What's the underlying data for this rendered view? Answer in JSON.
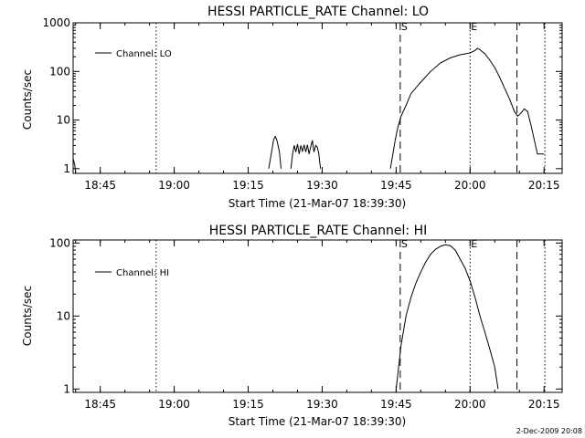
{
  "chart_data": [
    {
      "type": "line",
      "title": "HESSI PARTICLE_RATE Channel: LO",
      "xlabel": "Start Time (21-Mar-07 18:39:30)",
      "ylabel": "Counts/sec",
      "yscale": "log",
      "ylim": [
        0.8,
        1000
      ],
      "xlim": [
        "18:39:30",
        "20:18:40"
      ],
      "x_ticks": [
        "18:45",
        "19:00",
        "19:15",
        "19:30",
        "19:45",
        "20:00",
        "20:15"
      ],
      "y_ticks": [
        "1",
        "10",
        "100",
        "1000"
      ],
      "legend_position": "top-left",
      "grid": false,
      "series": [
        {
          "name": "Channel: LO",
          "segments": [
            [
              [
                "18:39:30",
                1.6
              ],
              [
                "18:39:50",
                1.2
              ],
              [
                "18:40:00",
                0.8
              ]
            ],
            [
              [
                "19:19:10",
                1.0
              ],
              [
                "19:19:40",
                2.0
              ],
              [
                "19:20:10",
                4.0
              ],
              [
                "19:20:30",
                4.6
              ],
              [
                "19:20:50",
                3.8
              ],
              [
                "19:21:20",
                2.2
              ],
              [
                "19:21:40",
                1.0
              ]
            ],
            [
              [
                "19:23:40",
                1.0
              ],
              [
                "19:24:00",
                2.0
              ],
              [
                "19:24:20",
                3.0
              ],
              [
                "19:24:40",
                2.2
              ],
              [
                "19:25:00",
                3.2
              ],
              [
                "19:25:20",
                2.0
              ],
              [
                "19:25:40",
                3.0
              ],
              [
                "19:26:00",
                2.3
              ],
              [
                "19:26:20",
                3.1
              ],
              [
                "19:26:40",
                2.2
              ],
              [
                "19:27:00",
                3.1
              ],
              [
                "19:27:20",
                2.0
              ],
              [
                "19:27:40",
                2.8
              ],
              [
                "19:28:00",
                3.8
              ],
              [
                "19:28:20",
                2.2
              ],
              [
                "19:28:40",
                3.0
              ],
              [
                "19:29:00",
                2.8
              ],
              [
                "19:29:20",
                2.0
              ],
              [
                "19:29:40",
                1.0
              ]
            ],
            [
              [
                "19:43:50",
                1.0
              ],
              [
                "19:44:20",
                2.0
              ],
              [
                "19:44:50",
                4.0
              ],
              [
                "19:45:20",
                7.0
              ],
              [
                "19:46:00",
                12.0
              ],
              [
                "19:47:00",
                20.0
              ],
              [
                "19:48:00",
                35.0
              ],
              [
                "19:50:00",
                60.0
              ],
              [
                "19:52:00",
                100.0
              ],
              [
                "19:54:00",
                150.0
              ],
              [
                "19:56:00",
                190.0
              ],
              [
                "19:58:00",
                220.0
              ],
              [
                "20:00:00",
                240.0
              ],
              [
                "20:01:00",
                270.0
              ],
              [
                "20:01:30",
                300.0
              ],
              [
                "20:02:00",
                280.0
              ],
              [
                "20:03:00",
                230.0
              ],
              [
                "20:04:00",
                170.0
              ],
              [
                "20:05:00",
                120.0
              ],
              [
                "20:06:00",
                75.0
              ],
              [
                "20:07:00",
                45.0
              ],
              [
                "20:08:00",
                27.0
              ],
              [
                "20:09:00",
                15.0
              ],
              [
                "20:09:40",
                12.0
              ],
              [
                "20:10:20",
                14.0
              ],
              [
                "20:11:00",
                17.0
              ],
              [
                "20:11:40",
                15.0
              ],
              [
                "20:12:20",
                8.0
              ],
              [
                "20:13:00",
                4.0
              ],
              [
                "20:13:40",
                2.0
              ],
              [
                "20:15:00",
                2.0
              ]
            ]
          ]
        }
      ],
      "markers": [
        {
          "label": "S",
          "time": "19:45:50",
          "style": "dashed"
        },
        {
          "label": "E",
          "time": "20:00:00",
          "style": "dotted"
        }
      ],
      "vlines": [
        {
          "time": "18:56:20",
          "style": "dotted"
        },
        {
          "time": "20:09:30",
          "style": "dashed"
        },
        {
          "time": "20:15:10",
          "style": "dotted"
        }
      ]
    },
    {
      "type": "line",
      "title": "HESSI PARTICLE_RATE Channel: HI",
      "xlabel": "Start Time (21-Mar-07 18:39:30)",
      "ylabel": "Counts/sec",
      "yscale": "log",
      "ylim": [
        0.9,
        110
      ],
      "xlim": [
        "18:39:30",
        "20:18:40"
      ],
      "x_ticks": [
        "18:45",
        "19:00",
        "19:15",
        "19:30",
        "19:45",
        "20:00",
        "20:15"
      ],
      "y_ticks": [
        "1",
        "10",
        "100"
      ],
      "legend_position": "top-left",
      "grid": false,
      "series": [
        {
          "name": "Channel: HI",
          "segments": [
            [
              [
                "19:45:00",
                1.0
              ],
              [
                "19:46:00",
                4.0
              ],
              [
                "19:47:00",
                10.0
              ],
              [
                "19:48:00",
                18.0
              ],
              [
                "19:49:00",
                28.0
              ],
              [
                "19:50:00",
                40.0
              ],
              [
                "19:51:00",
                55.0
              ],
              [
                "19:52:00",
                70.0
              ],
              [
                "19:53:00",
                82.0
              ],
              [
                "19:54:00",
                90.0
              ],
              [
                "19:55:00",
                95.0
              ],
              [
                "19:56:00",
                92.0
              ],
              [
                "19:57:00",
                80.0
              ],
              [
                "19:58:00",
                60.0
              ],
              [
                "19:59:00",
                45.0
              ],
              [
                "20:00:00",
                30.0
              ],
              [
                "20:01:00",
                18.0
              ],
              [
                "20:02:00",
                10.0
              ],
              [
                "20:03:00",
                6.0
              ],
              [
                "20:04:00",
                3.5
              ],
              [
                "20:05:00",
                2.0
              ],
              [
                "20:05:40",
                1.0
              ]
            ]
          ]
        }
      ],
      "markers": [
        {
          "label": "S",
          "time": "19:45:50",
          "style": "dashed"
        },
        {
          "label": "E",
          "time": "20:00:00",
          "style": "dotted"
        }
      ],
      "vlines": [
        {
          "time": "18:56:20",
          "style": "dotted"
        },
        {
          "time": "20:09:30",
          "style": "dashed"
        },
        {
          "time": "20:15:10",
          "style": "dotted"
        }
      ]
    }
  ],
  "footer": {
    "date_stamp": "2-Dec-2009 20:08"
  }
}
